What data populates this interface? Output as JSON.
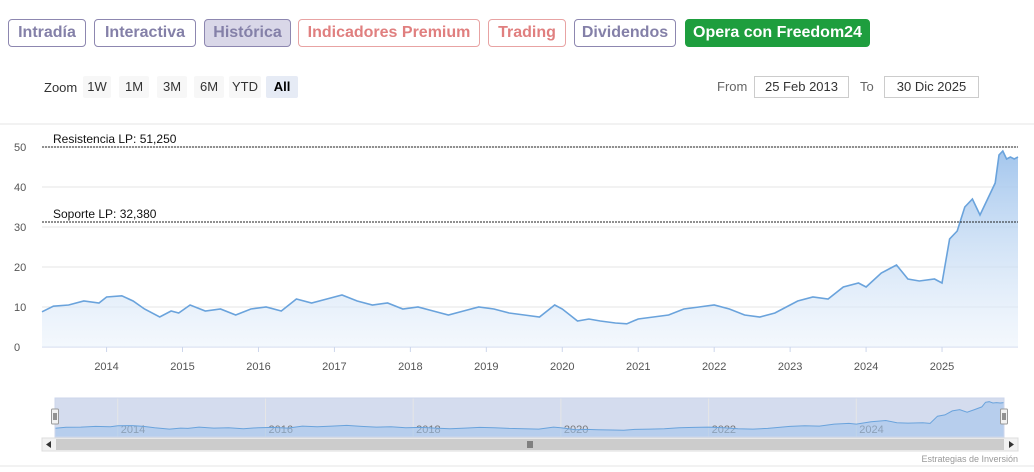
{
  "tabs": [
    {
      "label": "Intradía",
      "style": "purple",
      "active": false
    },
    {
      "label": "Interactiva",
      "style": "purple",
      "active": false
    },
    {
      "label": "Histórica",
      "style": "purple",
      "active": true
    },
    {
      "label": "Indicadores Premium",
      "style": "pink",
      "active": false
    },
    {
      "label": "Trading",
      "style": "pink",
      "active": false
    },
    {
      "label": "Dividendos",
      "style": "purple",
      "active": false
    },
    {
      "label": "Opera con Freedom24",
      "style": "green",
      "active": false
    }
  ],
  "zoom": {
    "label": "Zoom",
    "buttons": [
      {
        "label": "1W",
        "active": false
      },
      {
        "label": "1M",
        "active": false
      },
      {
        "label": "3M",
        "active": false
      },
      {
        "label": "6M",
        "active": false
      },
      {
        "label": "YTD",
        "active": false
      },
      {
        "label": "All",
        "active": true
      }
    ]
  },
  "range": {
    "from_label": "From",
    "from_value": "25 Feb 2013",
    "to_label": "To",
    "to_value": "30 Dic 2025"
  },
  "credit": "Estrategias de Inversión",
  "colors": {
    "line": "#6aa3dc",
    "area_top": "#9fc3ec",
    "area_bottom": "#e8f1fb",
    "navigator_mask": "#ccd6eb"
  },
  "chart_data": {
    "type": "area",
    "title": "",
    "xlabel": "",
    "ylabel": "",
    "ylim": [
      0,
      50
    ],
    "yticks": [
      0,
      10,
      20,
      30,
      40,
      50
    ],
    "xlim": [
      2013.15,
      2026.0
    ],
    "xticks": [
      "2014",
      "2015",
      "2016",
      "2017",
      "2018",
      "2019",
      "2020",
      "2021",
      "2022",
      "2023",
      "2024",
      "2025"
    ],
    "navigator_ticks": [
      "2014",
      "2016",
      "2018",
      "2020",
      "2022",
      "2024"
    ],
    "grid": true,
    "annotations": [
      {
        "label": "Resistencia LP: 51,250",
        "value": 51.25
      },
      {
        "label": "Soporte LP: 32,380",
        "value": 32.38
      }
    ],
    "series": [
      {
        "x": [
          2013.15,
          2013.3,
          2013.5,
          2013.7,
          2013.9,
          2014.0,
          2014.2,
          2014.35,
          2014.5,
          2014.7,
          2014.85,
          2014.95,
          2015.1,
          2015.3,
          2015.5,
          2015.7,
          2015.9,
          2016.1,
          2016.3,
          2016.5,
          2016.7,
          2016.9,
          2017.1,
          2017.3,
          2017.5,
          2017.7,
          2017.9,
          2018.1,
          2018.3,
          2018.5,
          2018.7,
          2018.9,
          2019.1,
          2019.3,
          2019.5,
          2019.7,
          2019.9,
          2020.0,
          2020.1,
          2020.2,
          2020.35,
          2020.5,
          2020.7,
          2020.85,
          2021.0,
          2021.2,
          2021.4,
          2021.6,
          2021.8,
          2022.0,
          2022.2,
          2022.4,
          2022.6,
          2022.8,
          2022.95,
          2023.1,
          2023.3,
          2023.5,
          2023.7,
          2023.9,
          2024.0,
          2024.2,
          2024.4,
          2024.55,
          2024.7,
          2024.9,
          2025.0,
          2025.1,
          2025.2,
          2025.3,
          2025.4,
          2025.5,
          2025.6,
          2025.7,
          2025.75,
          2025.8,
          2025.85,
          2025.9,
          2025.95,
          2026.0
        ],
        "y": [
          8.8,
          10.2,
          10.5,
          11.5,
          11.0,
          12.5,
          12.8,
          11.5,
          9.5,
          7.5,
          9.0,
          8.5,
          10.5,
          9.0,
          9.5,
          8.0,
          9.5,
          10.0,
          9.0,
          12.0,
          11.0,
          12.0,
          13.0,
          11.5,
          10.5,
          11.0,
          9.5,
          10.0,
          9.0,
          8.0,
          9.0,
          10.0,
          9.5,
          8.5,
          8.0,
          7.5,
          10.5,
          9.5,
          8.0,
          6.5,
          7.0,
          6.5,
          6.0,
          5.8,
          7.0,
          7.5,
          8.0,
          9.5,
          10.0,
          10.5,
          9.5,
          8.0,
          7.5,
          8.5,
          10.0,
          11.5,
          12.5,
          12.0,
          15.0,
          16.0,
          15.0,
          18.5,
          20.5,
          17.0,
          16.5,
          17.0,
          16.0,
          27.0,
          29.0,
          35.0,
          37.0,
          33.0,
          37.0,
          41.0,
          48.0,
          49.0,
          47.0,
          47.5,
          47.0,
          47.5
        ]
      }
    ]
  }
}
